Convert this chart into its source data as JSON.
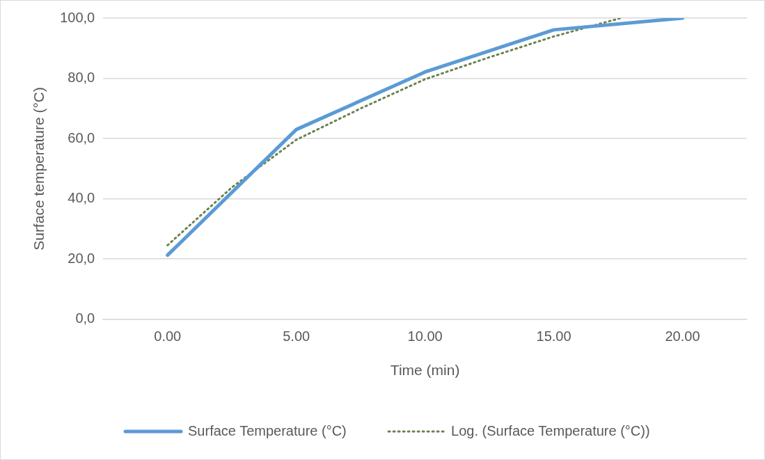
{
  "chart_data": {
    "type": "line",
    "xlabel": "Time (min)",
    "ylabel": "Surface temperature (°C)",
    "xlim": [
      -2.5,
      22.5
    ],
    "xticks": [
      {
        "value": 0,
        "label": "0.00"
      },
      {
        "value": 5,
        "label": "5.00"
      },
      {
        "value": 10,
        "label": "10.00"
      },
      {
        "value": 15,
        "label": "15.00"
      },
      {
        "value": 20,
        "label": "20.00"
      }
    ],
    "ylim": [
      0,
      100
    ],
    "yticks": [
      {
        "value": 0,
        "label": "0,0"
      },
      {
        "value": 20,
        "label": "20,0"
      },
      {
        "value": 40,
        "label": "40,0"
      },
      {
        "value": 60,
        "label": "60,0"
      },
      {
        "value": 80,
        "label": "80,0"
      },
      {
        "value": 100,
        "label": "100,0"
      }
    ],
    "grid": "y",
    "legend": "bottom",
    "marker": "none",
    "series": [
      {
        "name": "Surface Temperature (°C)",
        "color": "#5b9bd5",
        "line_style": "solid",
        "x": [
          0,
          5,
          10,
          15,
          20
        ],
        "values": [
          21.3,
          63.0,
          82.1,
          96.1,
          100
        ]
      },
      {
        "name": "Log. (Surface Temperature (°C))",
        "color": "#6b8150",
        "line_style": "dotted",
        "x": [
          0,
          2.5,
          5,
          7.5,
          10,
          12.5,
          15,
          17.6
        ],
        "values": [
          24.6,
          43.8,
          59.6,
          70.0,
          79.7,
          87.0,
          93.9,
          100
        ]
      }
    ]
  }
}
